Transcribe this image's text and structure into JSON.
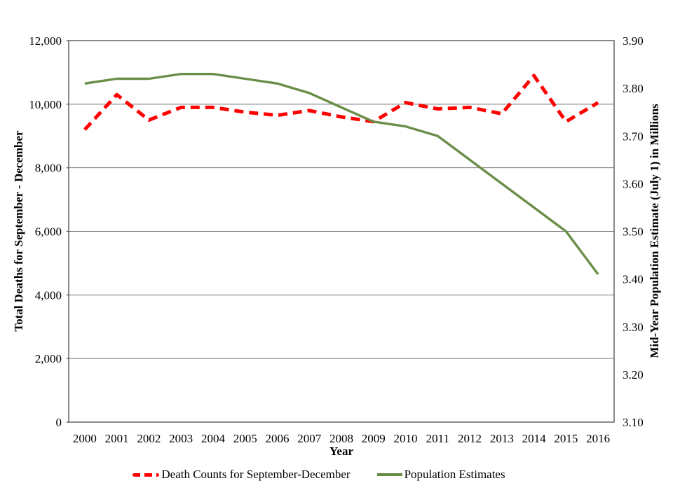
{
  "chart_data": {
    "type": "line",
    "title": "",
    "xlabel": "Year",
    "ylabel_left": "Total Deaths for September - December",
    "ylabel_right": "Mid-Year Population Estimate (July 1) in Millions",
    "categories": [
      "2000",
      "2001",
      "2002",
      "2003",
      "2004",
      "2005",
      "2006",
      "2007",
      "2008",
      "2009",
      "2010",
      "2011",
      "2012",
      "2013",
      "2014",
      "2015",
      "2016"
    ],
    "series": [
      {
        "name": "Death Counts for September-December",
        "axis": "left",
        "color": "#ff0000",
        "style": "dashed",
        "values": [
          9200,
          10300,
          9500,
          9900,
          9900,
          9750,
          9650,
          9800,
          9600,
          9450,
          10050,
          9850,
          9900,
          9700,
          10900,
          9450,
          10050
        ]
      },
      {
        "name": "Population Estimates",
        "axis": "right",
        "color": "#6a8e48",
        "style": "solid",
        "values": [
          3.81,
          3.82,
          3.82,
          3.83,
          3.83,
          3.82,
          3.81,
          3.79,
          3.76,
          3.73,
          3.72,
          3.7,
          3.65,
          3.6,
          3.55,
          3.5,
          3.41
        ]
      }
    ],
    "y_left_axis": {
      "min": 0,
      "max": 12000,
      "step": 2000,
      "tick_labels": [
        "0",
        "2,000",
        "4,000",
        "6,000",
        "8,000",
        "10,000",
        "12,000"
      ]
    },
    "y_right_axis": {
      "min": 3.1,
      "max": 3.9,
      "step": 0.1,
      "tick_labels": [
        "3.10",
        "3.20",
        "3.30",
        "3.40",
        "3.50",
        "3.60",
        "3.70",
        "3.80",
        "3.90"
      ]
    },
    "grid": true,
    "legend_position": "bottom"
  },
  "legend": {
    "items": [
      {
        "label": "Death Counts for September-December",
        "color": "#ff0000",
        "style": "dashed"
      },
      {
        "label": "Population Estimates",
        "color": "#6a8e48",
        "style": "solid"
      }
    ]
  },
  "colors": {
    "deaths_line": "#ff0000",
    "population_line": "#6a8e48",
    "gridline": "#757575",
    "frame": "#595959",
    "text": "#000000",
    "background": "#ffffff"
  }
}
